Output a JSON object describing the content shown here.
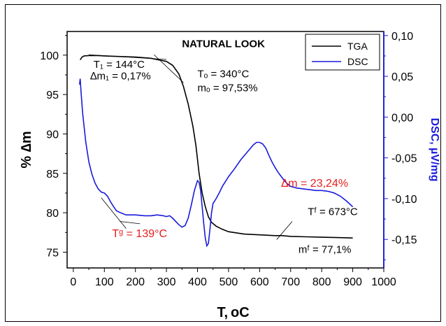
{
  "chart_data": {
    "type": "line",
    "title": "NATURAL LOOK",
    "xlabel": "T,",
    "xlabel_unit": "oC",
    "ylabel_left": "% ∆m",
    "ylabel_right": "DSC, µV/mg",
    "xlim": [
      -20,
      1000
    ],
    "ylim_left": [
      73,
      103
    ],
    "ylim_right": [
      -0.185,
      0.105
    ],
    "x_ticks": [
      0,
      100,
      200,
      300,
      400,
      500,
      600,
      700,
      800,
      900,
      1000
    ],
    "x_tick_labels": [
      "0",
      "100",
      "200",
      "300",
      "400",
      "500",
      "600",
      "700",
      "800",
      "900",
      "1000"
    ],
    "y_left_ticks": [
      75,
      80,
      85,
      90,
      95,
      100
    ],
    "y_left_tick_labels": [
      "75",
      "80",
      "85",
      "90",
      "95",
      "100"
    ],
    "y_right_ticks": [
      0.1,
      0.05,
      0.0,
      -0.05,
      -0.1,
      -0.15
    ],
    "y_right_tick_labels": [
      "0,10",
      "0,05",
      "0,00",
      "-0,05",
      "-0,10",
      "-0,15"
    ],
    "legend": {
      "position": "top-right",
      "entries": [
        {
          "name": "TGA",
          "color": "#000000"
        },
        {
          "name": "DSC",
          "color": "#1a1adc"
        }
      ]
    },
    "series": [
      {
        "name": "TGA",
        "axis": "left",
        "color": "#000000",
        "x": [
          22,
          28,
          35,
          50,
          80,
          100,
          144,
          200,
          250,
          300,
          320,
          340,
          355,
          370,
          385,
          395,
          405,
          415,
          425,
          435,
          445,
          460,
          480,
          500,
          550,
          600,
          650,
          673,
          700,
          750,
          800,
          850,
          900
        ],
        "y": [
          99.4,
          99.75,
          99.9,
          99.95,
          99.95,
          99.9,
          99.83,
          99.75,
          99.6,
          99.2,
          98.7,
          97.6,
          96.0,
          93.8,
          91.0,
          88.5,
          85.0,
          82.5,
          80.8,
          79.5,
          78.8,
          78.3,
          77.9,
          77.6,
          77.3,
          77.2,
          77.1,
          77.1,
          77.0,
          76.95,
          76.9,
          76.85,
          76.8
        ]
      },
      {
        "name": "DSC",
        "axis": "right",
        "color": "#1a1adc",
        "x": [
          20,
          22,
          25,
          30,
          40,
          50,
          60,
          70,
          80,
          90,
          100,
          110,
          120,
          130,
          139,
          150,
          170,
          200,
          230,
          250,
          270,
          290,
          300,
          310,
          320,
          330,
          340,
          350,
          360,
          370,
          380,
          390,
          400,
          405,
          410,
          415,
          420,
          425,
          430,
          435,
          440,
          445,
          450,
          460,
          470,
          480,
          500,
          520,
          540,
          560,
          580,
          590,
          600,
          610,
          620,
          630,
          640,
          650,
          660,
          670,
          680,
          690,
          700,
          720,
          740,
          760,
          780,
          800,
          820,
          840,
          860,
          880,
          900
        ],
        "y": [
          0.04,
          0.047,
          0.03,
          0.005,
          -0.03,
          -0.055,
          -0.07,
          -0.081,
          -0.088,
          -0.092,
          -0.093,
          -0.097,
          -0.104,
          -0.11,
          -0.115,
          -0.117,
          -0.12,
          -0.12,
          -0.121,
          -0.121,
          -0.12,
          -0.121,
          -0.122,
          -0.121,
          -0.124,
          -0.128,
          -0.132,
          -0.135,
          -0.133,
          -0.124,
          -0.108,
          -0.09,
          -0.078,
          -0.08,
          -0.09,
          -0.11,
          -0.13,
          -0.148,
          -0.158,
          -0.155,
          -0.138,
          -0.118,
          -0.106,
          -0.1,
          -0.093,
          -0.085,
          -0.073,
          -0.063,
          -0.052,
          -0.043,
          -0.034,
          -0.031,
          -0.031,
          -0.033,
          -0.038,
          -0.047,
          -0.055,
          -0.062,
          -0.068,
          -0.073,
          -0.078,
          -0.082,
          -0.085,
          -0.087,
          -0.088,
          -0.089,
          -0.09,
          -0.09,
          -0.091,
          -0.093,
          -0.097,
          -0.103,
          -0.11
        ]
      }
    ],
    "annotations": [
      {
        "text": "NATURAL LOOK",
        "x": 350,
        "y": 101,
        "color": "#000000"
      },
      {
        "text": "T₁ = 144°C",
        "x": 65,
        "y": 98.4,
        "color": "#000000"
      },
      {
        "text": "∆m₁ = 0,17%",
        "x": 55,
        "y": 96.9,
        "color": "#000000"
      },
      {
        "text": "Tₒ = 340°C",
        "x": 400,
        "y": 97.2,
        "color": "#000000"
      },
      {
        "text": "mₒ = 97,53%",
        "x": 400,
        "y": 95.4,
        "color": "#000000"
      },
      {
        "text": "∆m = 23,24%",
        "x": 670,
        "y": 83.3,
        "color": "#e41e1e"
      },
      {
        "text": "Tᶠ = 673°C",
        "x": 755,
        "y": 79.7,
        "color": "#000000"
      },
      {
        "text": "Tᵍ = 139°C",
        "x": 125,
        "y": 76.9,
        "color": "#e41e1e"
      },
      {
        "text": "mᶠ = 77,1%",
        "x": 725,
        "y": 74.9,
        "color": "#000000"
      }
    ],
    "grid": false
  }
}
